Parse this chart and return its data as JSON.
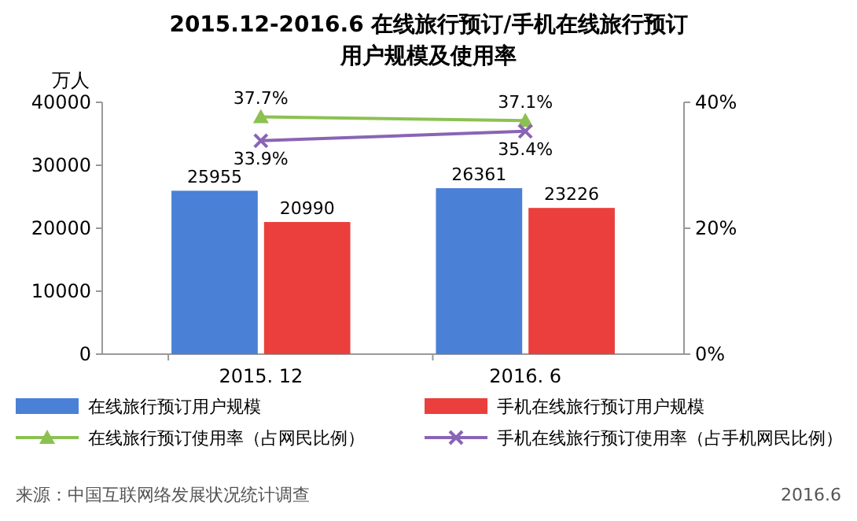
{
  "chart_data": {
    "type": "bar",
    "title": "2015.12-2016.6 在线旅行预订/手机在线旅行预订",
    "subtitle": "用户规模及使用率",
    "ylabel": "万人",
    "categories": [
      "2015. 12",
      "2016. 6"
    ],
    "series": [
      {
        "name": "在线旅行预订用户规模",
        "color": "#4a80d6",
        "values": [
          25955,
          26361
        ]
      },
      {
        "name": "手机在线旅行预订用户规模",
        "color": "#ea3f3c",
        "values": [
          20990,
          23226
        ]
      },
      {
        "name": "在线旅行预订使用率（占网民比例）",
        "type": "line",
        "axis": "y2",
        "marker": "triangle",
        "color": "#8cc152",
        "values": [
          37.7,
          37.1
        ],
        "value_labels": [
          "37.7%",
          "37.1%"
        ]
      },
      {
        "name": "手机在线旅行预订使用率（占手机网民比例）",
        "type": "line",
        "axis": "y2",
        "marker": "cross",
        "color": "#8a64b5",
        "values": [
          33.9,
          35.4
        ],
        "value_labels": [
          "33.9%",
          "35.4%"
        ]
      }
    ],
    "ylim": [
      0,
      40000
    ],
    "yticks": [
      0,
      10000,
      20000,
      30000,
      40000
    ],
    "y2lim": [
      0,
      40
    ],
    "y2ticks": [
      {
        "value": 0,
        "label": "0%"
      },
      {
        "value": 20,
        "label": "20%"
      },
      {
        "value": 40,
        "label": "40%"
      }
    ],
    "data_labels": true,
    "grid": false,
    "legend": "bottom",
    "line_style": "solid",
    "annotations": [
      "来源：中国互联网络发展状况统计调查",
      "2016.6"
    ]
  }
}
